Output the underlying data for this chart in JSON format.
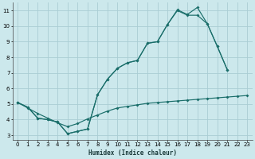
{
  "xlabel": "Humidex (Indice chaleur)",
  "bg_color": "#cce8ec",
  "grid_color": "#aacdd4",
  "line_color": "#1a6e6a",
  "xlim": [
    -0.5,
    23.5
  ],
  "ylim": [
    2.7,
    11.5
  ],
  "xticks": [
    0,
    1,
    2,
    3,
    4,
    5,
    6,
    7,
    8,
    9,
    10,
    11,
    12,
    13,
    14,
    15,
    16,
    17,
    18,
    19,
    20,
    21,
    22,
    23
  ],
  "yticks": [
    3,
    4,
    5,
    6,
    7,
    8,
    9,
    10,
    11
  ],
  "line1_x": [
    0,
    1,
    2,
    3,
    4,
    5,
    6,
    7,
    8,
    9,
    10,
    11,
    12,
    13,
    14,
    15,
    16,
    17,
    18,
    19,
    20,
    21
  ],
  "line1_y": [
    5.1,
    4.8,
    4.1,
    4.0,
    3.85,
    3.1,
    3.25,
    3.4,
    5.6,
    6.6,
    7.3,
    7.65,
    7.8,
    8.9,
    9.0,
    10.1,
    11.0,
    10.7,
    10.7,
    10.15,
    8.7,
    7.2
  ],
  "line2_x": [
    0,
    1,
    2,
    3,
    4,
    5,
    6,
    7,
    8,
    9,
    10,
    11,
    12,
    13,
    14,
    15,
    16,
    17,
    18,
    19,
    20,
    21,
    22,
    23
  ],
  "line2_y": [
    5.1,
    4.8,
    4.1,
    4.0,
    3.85,
    3.1,
    3.25,
    3.4,
    5.6,
    6.6,
    7.3,
    7.65,
    7.8,
    8.9,
    9.0,
    10.1,
    11.05,
    10.75,
    11.2,
    10.15,
    8.7,
    7.2,
    null,
    null
  ],
  "line3_x": [
    0,
    1,
    2,
    3,
    4,
    5,
    6,
    7,
    8,
    9,
    10,
    11,
    12,
    13,
    14,
    15,
    16,
    17,
    18,
    19,
    20,
    21,
    22,
    23
  ],
  "line3_y": [
    5.1,
    4.75,
    4.4,
    4.1,
    3.8,
    3.55,
    3.75,
    4.05,
    4.3,
    4.55,
    4.75,
    4.85,
    4.95,
    5.05,
    5.1,
    5.15,
    5.2,
    5.25,
    5.3,
    5.35,
    5.4,
    5.45,
    5.5,
    5.55
  ]
}
